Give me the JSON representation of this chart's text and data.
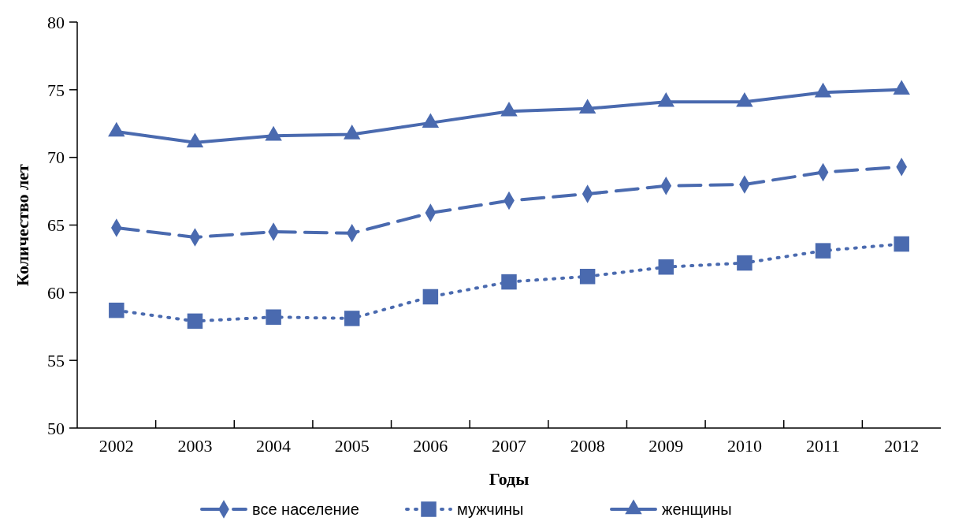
{
  "chart_data": {
    "type": "line",
    "xlabel": "Годы",
    "ylabel": "Количество лет",
    "categories": [
      "2002",
      "2003",
      "2004",
      "2005",
      "2006",
      "2007",
      "2008",
      "2009",
      "2010",
      "2011",
      "2012"
    ],
    "ylim": [
      50,
      80
    ],
    "yticks": [
      50,
      55,
      60,
      65,
      70,
      75,
      80
    ],
    "grid": false,
    "legend": "bottom",
    "series": [
      {
        "name": "все население",
        "color": "#4a6aaf",
        "marker": "diamond",
        "line_style": "dashed",
        "values": [
          64.8,
          64.1,
          64.5,
          64.4,
          65.9,
          66.8,
          67.3,
          67.9,
          68.0,
          68.9,
          69.3
        ]
      },
      {
        "name": "мужчины",
        "color": "#4a6aaf",
        "marker": "square",
        "line_style": "dotted",
        "values": [
          58.7,
          57.9,
          58.2,
          58.1,
          59.7,
          60.8,
          61.2,
          61.9,
          62.2,
          63.1,
          63.6
        ]
      },
      {
        "name": "женщины",
        "color": "#4a6aaf",
        "marker": "triangle",
        "line_style": "solid",
        "values": [
          71.9,
          71.1,
          71.6,
          71.7,
          72.55,
          73.4,
          73.6,
          74.1,
          74.1,
          74.8,
          75.0
        ]
      }
    ]
  }
}
